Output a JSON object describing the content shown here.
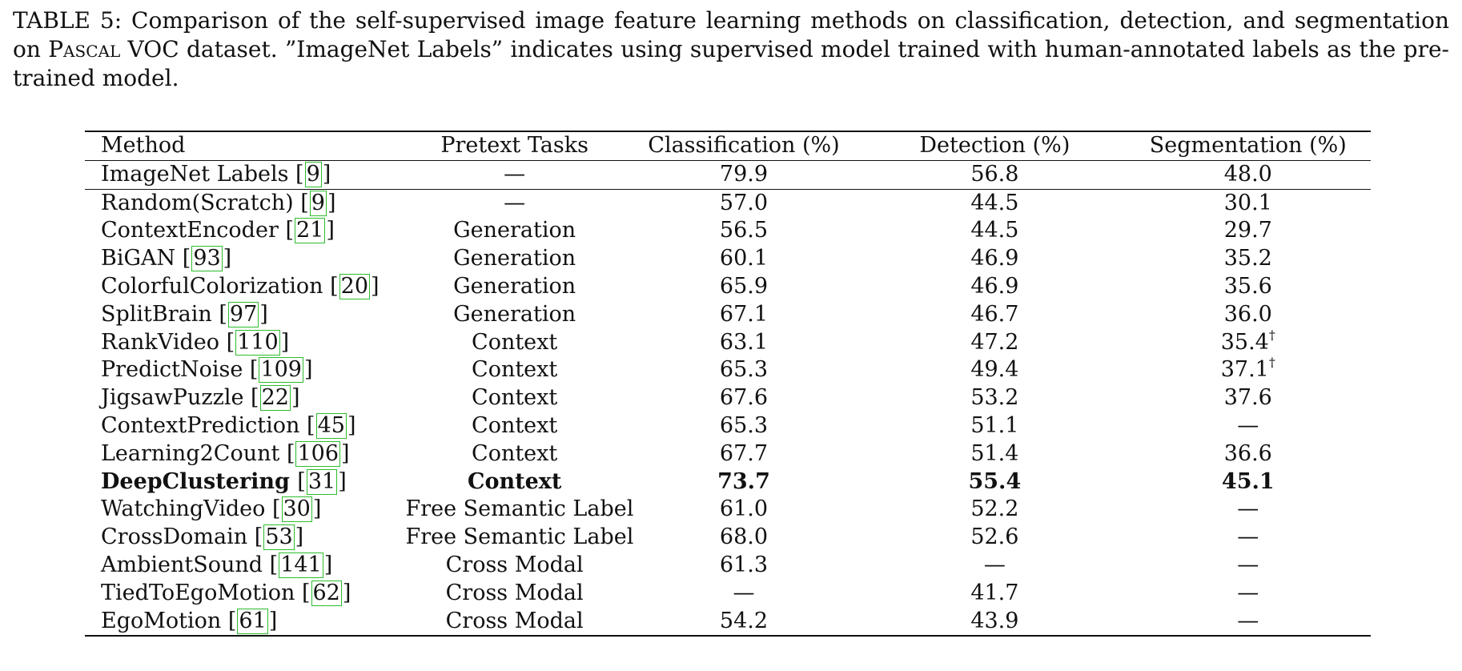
{
  "caption": {
    "part1": "TABLE 5: Comparison of the self-supervised image feature learning methods on classification, detection, and segmentation on ",
    "pascal": "Pascal",
    "part2": " VOC dataset. ”ImageNet Labels” indicates using supervised model trained with human-annotated labels as the pre-trained model."
  },
  "headers": {
    "method": "Method",
    "pretext": "Pretext Tasks",
    "cls": "Classification (%)",
    "det": "Detection (%)",
    "seg": "Segmentation (%)"
  },
  "rows": [
    {
      "name": "ImageNet Labels",
      "ref": "9",
      "pretext": "—",
      "cls": "79.9",
      "det": "56.8",
      "seg": "48.0",
      "seg_mark": ""
    },
    {
      "name": "Random(Scratch)",
      "ref": "9",
      "pretext": "—",
      "cls": "57.0",
      "det": "44.5",
      "seg": "30.1",
      "seg_mark": ""
    },
    {
      "name": "ContextEncoder",
      "ref": "21",
      "pretext": "Generation",
      "cls": "56.5",
      "det": "44.5",
      "seg": "29.7",
      "seg_mark": ""
    },
    {
      "name": "BiGAN",
      "ref": "93",
      "pretext": "Generation",
      "cls": "60.1",
      "det": "46.9",
      "seg": "35.2",
      "seg_mark": ""
    },
    {
      "name": "ColorfulColorization",
      "ref": "20",
      "pretext": "Generation",
      "cls": "65.9",
      "det": "46.9",
      "seg": "35.6",
      "seg_mark": ""
    },
    {
      "name": "SplitBrain",
      "ref": "97",
      "pretext": "Generation",
      "cls": "67.1",
      "det": "46.7",
      "seg": "36.0",
      "seg_mark": ""
    },
    {
      "name": "RankVideo",
      "ref": "110",
      "pretext": "Context",
      "cls": "63.1",
      "det": "47.2",
      "seg": "35.4",
      "seg_mark": "†"
    },
    {
      "name": "PredictNoise",
      "ref": "109",
      "pretext": "Context",
      "cls": "65.3",
      "det": "49.4",
      "seg": "37.1",
      "seg_mark": "†"
    },
    {
      "name": "JigsawPuzzle",
      "ref": "22",
      "pretext": "Context",
      "cls": "67.6",
      "det": "53.2",
      "seg": "37.6",
      "seg_mark": ""
    },
    {
      "name": "ContextPrediction",
      "ref": "45",
      "pretext": "Context",
      "cls": "65.3",
      "det": "51.1",
      "seg": "—",
      "seg_mark": ""
    },
    {
      "name": "Learning2Count",
      "ref": "106",
      "pretext": "Context",
      "cls": "67.7",
      "det": "51.4",
      "seg": "36.6",
      "seg_mark": ""
    },
    {
      "name": "DeepClustering",
      "ref": "31",
      "pretext": "Context",
      "cls": "73.7",
      "det": "55.4",
      "seg": "45.1",
      "seg_mark": "",
      "bold": true
    },
    {
      "name": "WatchingVideo",
      "ref": "30",
      "pretext": "Free Semantic Label",
      "cls": "61.0",
      "det": "52.2",
      "seg": "—",
      "seg_mark": ""
    },
    {
      "name": "CrossDomain",
      "ref": "53",
      "pretext": "Free Semantic Label",
      "cls": "68.0",
      "det": "52.6",
      "seg": "—",
      "seg_mark": ""
    },
    {
      "name": "AmbientSound",
      "ref": "141",
      "pretext": "Cross Modal",
      "cls": "61.3",
      "det": "—",
      "seg": "—",
      "seg_mark": ""
    },
    {
      "name": "TiedToEgoMotion",
      "ref": "62",
      "pretext": "Cross Modal",
      "cls": "—",
      "det": "41.7",
      "seg": "—",
      "seg_mark": ""
    },
    {
      "name": "EgoMotion",
      "ref": "61",
      "pretext": "Cross Modal",
      "cls": "54.2",
      "det": "43.9",
      "seg": "—",
      "seg_mark": ""
    }
  ]
}
